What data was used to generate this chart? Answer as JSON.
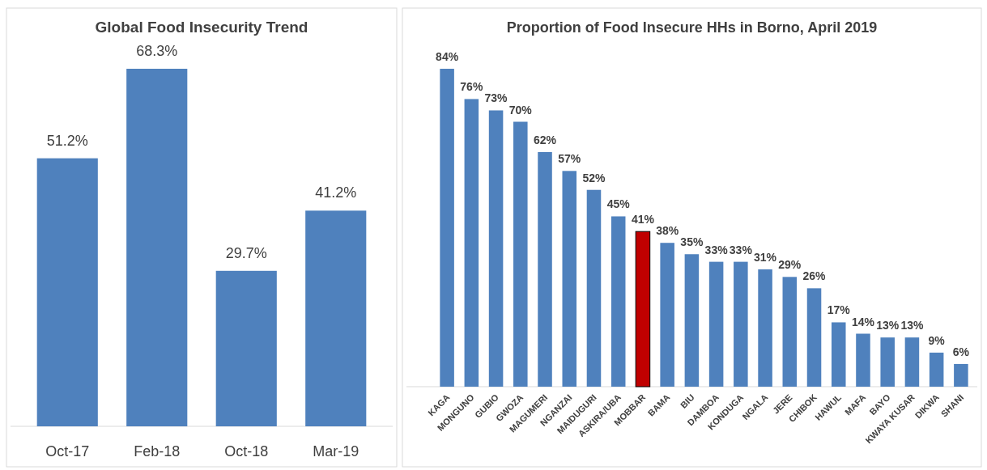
{
  "chart_data": [
    {
      "type": "bar",
      "title": "Global Food Insecurity Trend",
      "categories": [
        "Oct-17",
        "Feb-18",
        "Oct-18",
        "Mar-19"
      ],
      "values": [
        51.2,
        68.3,
        29.7,
        41.2
      ],
      "value_labels": [
        "51.2%",
        "68.3%",
        "29.7%",
        "41.2%"
      ],
      "color": "#4f81bd"
    },
    {
      "type": "bar",
      "title": "Proportion of Food Insecure HHs in Borno, April 2019",
      "categories": [
        "KAGA",
        "MONGUNO",
        "GUBIO",
        "GWOZA",
        "MAGUMERI",
        "NGANZAI",
        "MAIDUGURI",
        "ASKIRA/UBA",
        "MOBBAR",
        "BAMA",
        "BIU",
        "DAMBOA",
        "KONDUGA",
        "NGALA",
        "JERE",
        "CHIBOK",
        "HAWUL",
        "MAFA",
        "BAYO",
        "KWAYA KUSAR",
        "DIKWA",
        "SHANI"
      ],
      "values": [
        84,
        76,
        73,
        70,
        62,
        57,
        52,
        45,
        41,
        38,
        35,
        33,
        33,
        31,
        29,
        26,
        17,
        14,
        13,
        13,
        9,
        6
      ],
      "value_labels": [
        "84%",
        "76%",
        "73%",
        "70%",
        "62%",
        "57%",
        "52%",
        "45%",
        "41%",
        "38%",
        "35%",
        "33%",
        "33%",
        "31%",
        "29%",
        "26%",
        "17%",
        "14%",
        "13%",
        "13%",
        "9%",
        "6%"
      ],
      "colors": [
        "#4f81bd",
        "#4f81bd",
        "#4f81bd",
        "#4f81bd",
        "#4f81bd",
        "#4f81bd",
        "#4f81bd",
        "#4f81bd",
        "#c00000",
        "#4f81bd",
        "#4f81bd",
        "#4f81bd",
        "#4f81bd",
        "#4f81bd",
        "#4f81bd",
        "#4f81bd",
        "#4f81bd",
        "#4f81bd",
        "#4f81bd",
        "#4f81bd",
        "#4f81bd",
        "#4f81bd"
      ]
    }
  ]
}
